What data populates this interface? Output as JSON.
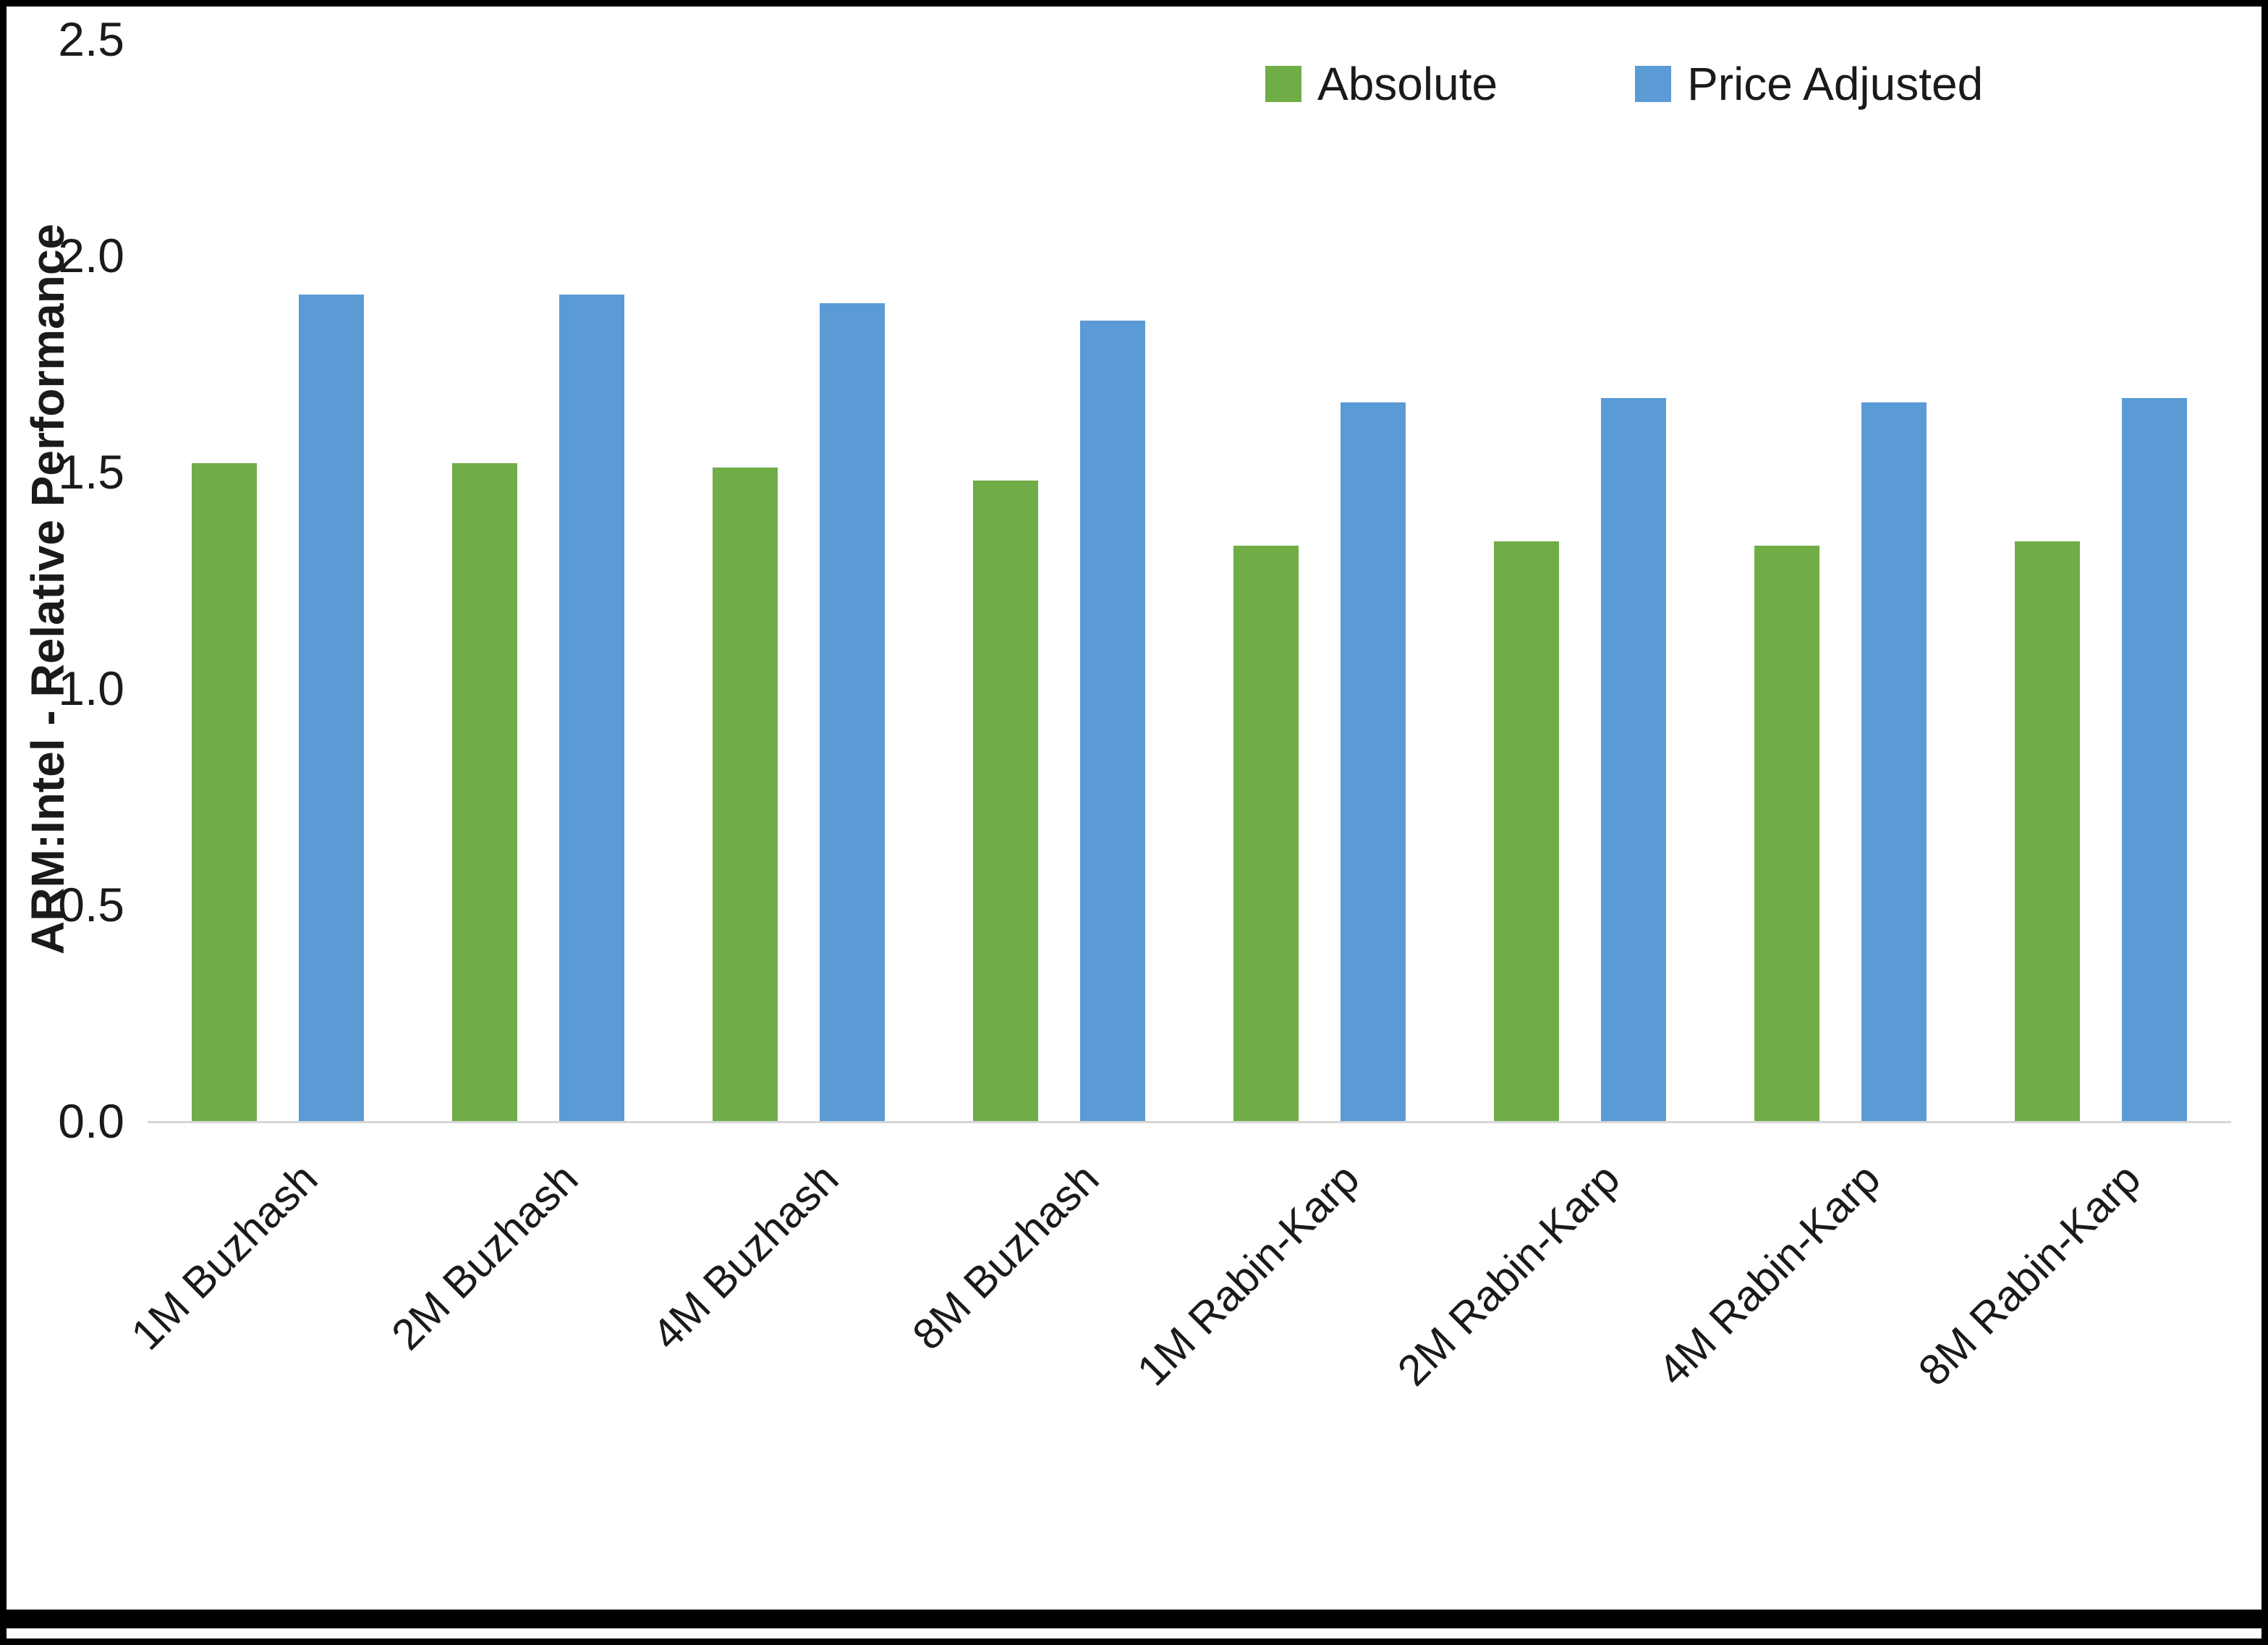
{
  "chart_data": {
    "type": "bar",
    "title": "",
    "xlabel": "",
    "ylabel": "ARM:Intel - Relative Performance",
    "ylim": [
      0,
      2.5
    ],
    "yticks": [
      "0.0",
      "0.5",
      "1.0",
      "1.5",
      "2.0",
      "2.5"
    ],
    "grid": false,
    "legend_position": "top-right",
    "categories": [
      "1M Buzhash",
      "2M Buzhash",
      "4M Buzhash",
      "8M Buzhash",
      "1M Rabin-Karp",
      "2M Rabin-Karp",
      "4M Rabin-Karp",
      "8M Rabin-Karp"
    ],
    "series": [
      {
        "name": "Absolute",
        "color": "#70AD47",
        "values": [
          1.52,
          1.52,
          1.51,
          1.48,
          1.33,
          1.34,
          1.33,
          1.34
        ]
      },
      {
        "name": "Price Adjusted",
        "color": "#5B9BD5",
        "values": [
          1.91,
          1.91,
          1.89,
          1.85,
          1.66,
          1.67,
          1.66,
          1.67
        ]
      }
    ]
  }
}
